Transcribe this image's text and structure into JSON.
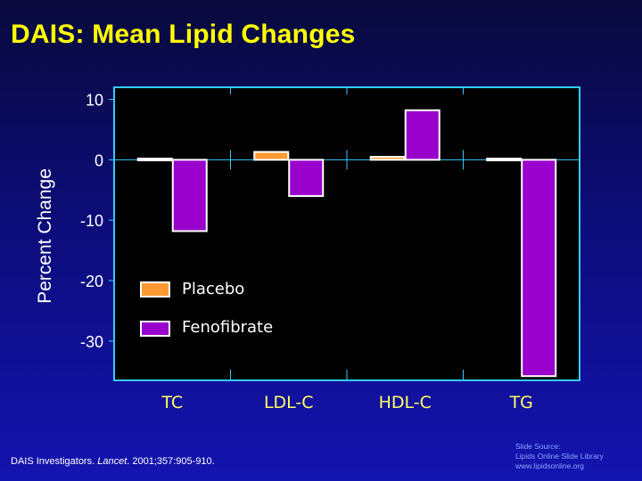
{
  "slide": {
    "title": "DAIS: Mean Lipid Changes",
    "citation": {
      "authors": "DAIS Investigators. ",
      "journal": "Lancet",
      "details": ". 2001;357:905-910."
    },
    "source": {
      "line1": "Slide Source:",
      "line2": "Lipids Online Slide Library",
      "line3": "www.lipidsonline.org"
    }
  },
  "colors": {
    "plot_background": "#000000",
    "frame": "#33ccff",
    "placebo": "#ff9933",
    "fenofibrate": "#9900cc",
    "bar_outline": "#ffffff",
    "category_text": "#ffff66",
    "tick_text": "#ffffff"
  },
  "chart_data": {
    "type": "bar",
    "title": "",
    "xlabel": "",
    "ylabel": "Percent Change",
    "categories": [
      "TC",
      "LDL-C",
      "HDL-C",
      "TG"
    ],
    "series": [
      {
        "name": "Placebo",
        "values": [
          0.2,
          1.3,
          0.5,
          0.2
        ]
      },
      {
        "name": "Fenofibrate",
        "values": [
          -11.8,
          -6.0,
          8.2,
          -35.8
        ]
      }
    ],
    "ylim": [
      -36.5,
      12
    ],
    "y_ticks": [
      10,
      0,
      -10,
      -20,
      -30
    ],
    "grid": false,
    "legend": "bottom-left"
  }
}
